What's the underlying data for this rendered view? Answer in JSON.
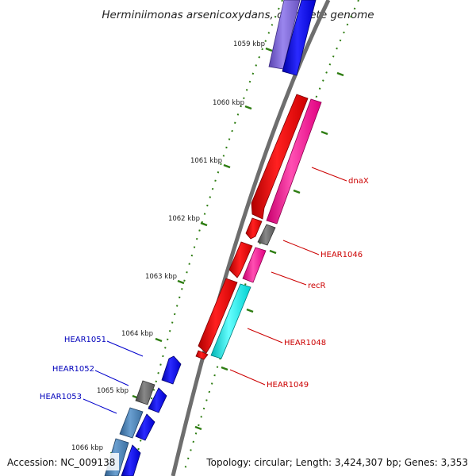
{
  "title": "Herminiimonas arsenicoxydans, complete genome",
  "footer": {
    "accession": "Accession: NC_009138",
    "summary": "Topology: circular; Length: 3,424,307 bp; Genes: 3,353"
  },
  "ticks": [
    "1059 kbp",
    "1060 kbp",
    "1061 kbp",
    "1062 kbp",
    "1063 kbp",
    "1064 kbp",
    "1065 kbp",
    "1066 kbp"
  ],
  "labels": {
    "right": [
      "dnaX",
      "HEAR1046",
      "recR",
      "HEAR1048",
      "HEAR1049"
    ],
    "left": [
      "HEAR1051",
      "HEAR1052",
      "HEAR1053"
    ]
  },
  "colors": {
    "label_right": "#cc0000",
    "label_left": "#0000bb",
    "backbone": "#777777",
    "ticks": "#2e7d12",
    "cds_forward": "#ee0000",
    "cds_reverse": "#0000ee",
    "pseudo": "#666666",
    "pink": "#ff1f9a",
    "cyan": "#00e5e5",
    "purple": "#7a62d0",
    "steel": "#4682b4"
  }
}
